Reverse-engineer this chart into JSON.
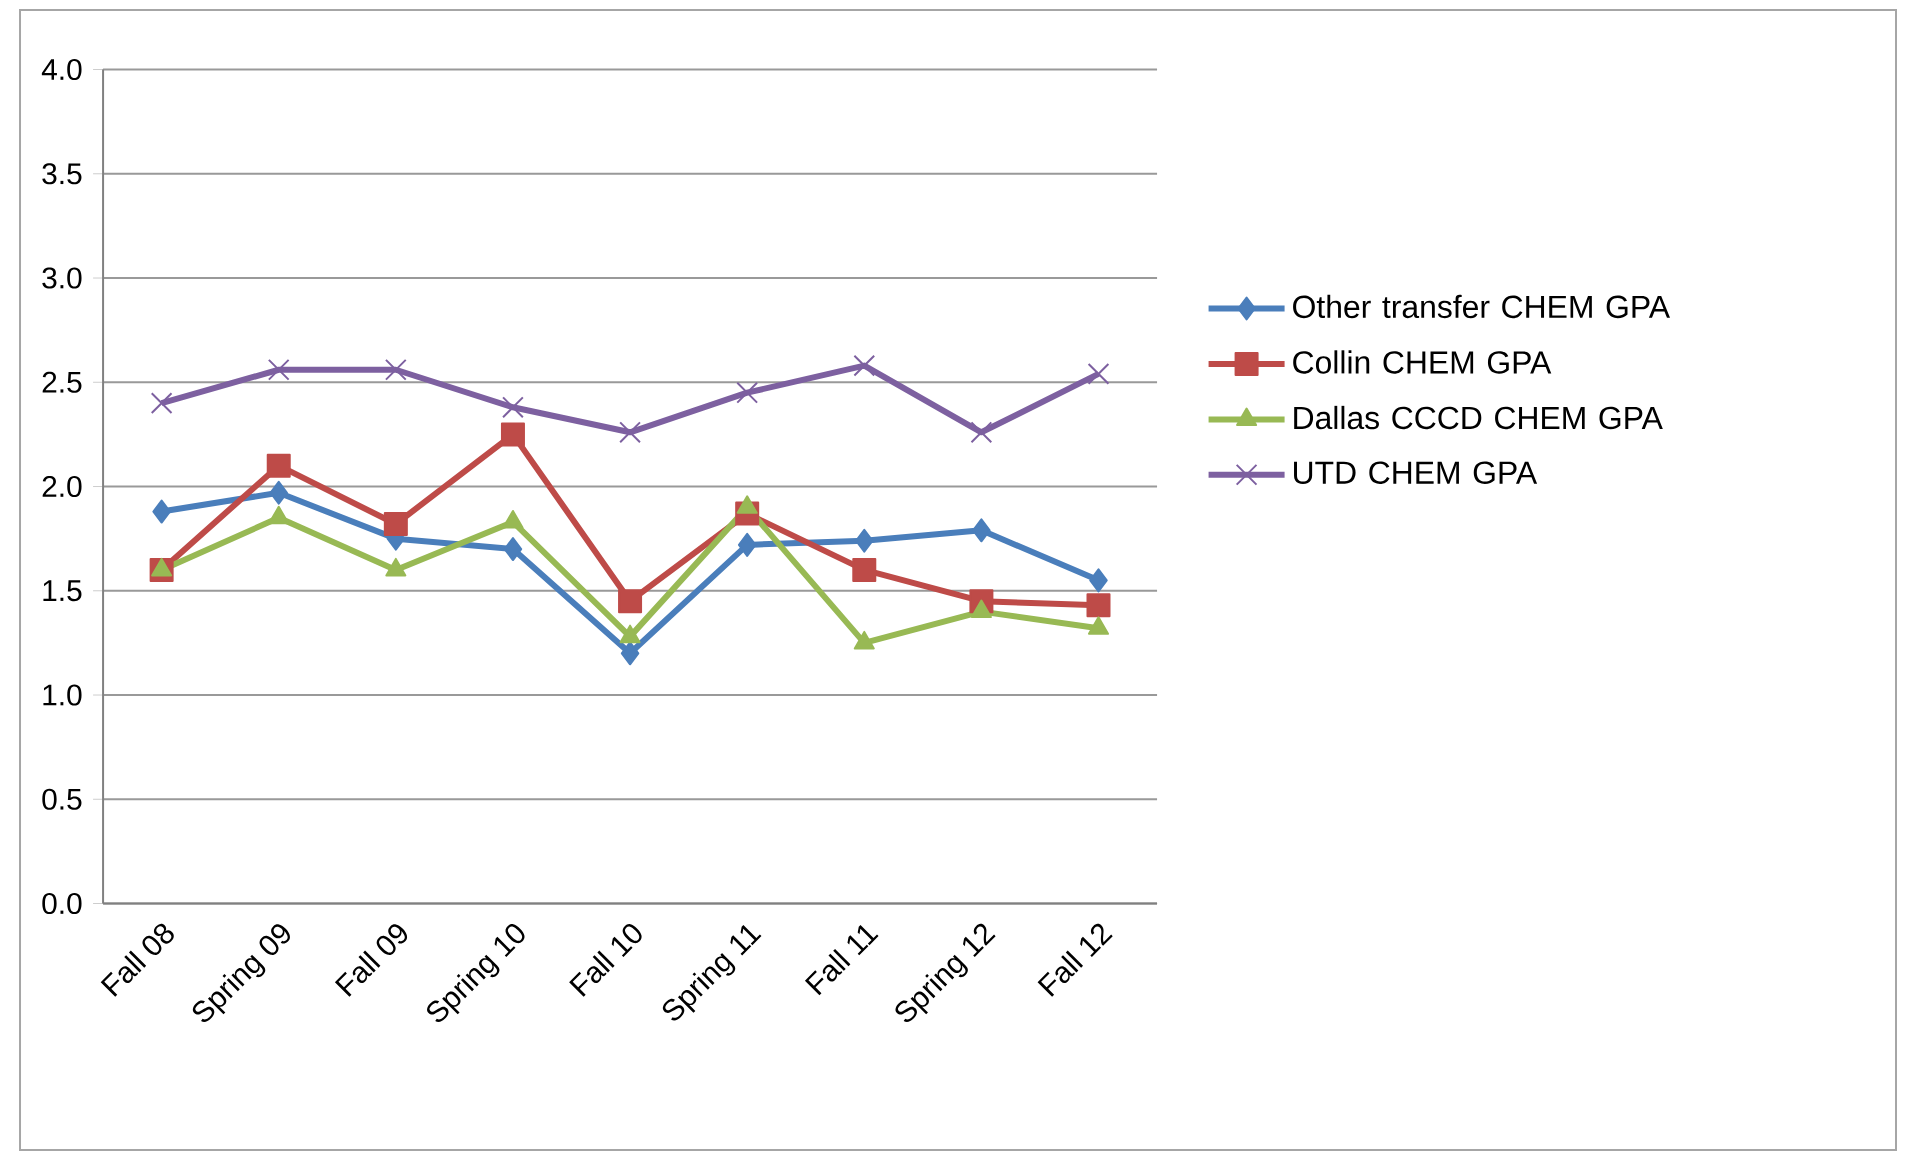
{
  "chart_data": {
    "type": "line",
    "categories": [
      "Fall 08",
      "Spring 09",
      "Fall 09",
      "Spring 10",
      "Fall 10",
      "Spring 11",
      "Fall 11",
      "Spring 12",
      "Fall 12"
    ],
    "series": [
      {
        "name": "Other transfer CHEM GPA",
        "color": "#4a7ebb",
        "marker": "diamond",
        "values": [
          1.88,
          1.97,
          1.75,
          1.7,
          1.2,
          1.72,
          1.74,
          1.79,
          1.55
        ]
      },
      {
        "name": "Collin CHEM GPA",
        "color": "#be4b48",
        "marker": "square",
        "values": [
          1.6,
          2.1,
          1.82,
          2.25,
          1.45,
          1.87,
          1.6,
          1.45,
          1.43
        ]
      },
      {
        "name": "Dallas CCCD CHEM GPA",
        "color": "#98b954",
        "marker": "triangle",
        "values": [
          1.6,
          1.85,
          1.6,
          1.83,
          1.28,
          1.9,
          1.25,
          1.4,
          1.32
        ]
      },
      {
        "name": "UTD CHEM GPA",
        "color": "#7d60a0",
        "marker": "cross",
        "values": [
          2.4,
          2.56,
          2.56,
          2.38,
          2.26,
          2.45,
          2.58,
          2.26,
          2.54
        ]
      }
    ],
    "ylim": [
      0,
      4
    ],
    "yticks": [
      {
        "value": 0,
        "label": "0.0"
      },
      {
        "value": 0.5,
        "label": "0.5"
      },
      {
        "value": 1,
        "label": "1.0"
      },
      {
        "value": 1.5,
        "label": "1.5"
      },
      {
        "value": 2,
        "label": "2.0"
      },
      {
        "value": 2.5,
        "label": "2.5"
      },
      {
        "value": 3,
        "label": "3.0"
      },
      {
        "value": 3.5,
        "label": "3.5"
      },
      {
        "value": 4,
        "label": "4.0"
      }
    ],
    "grid": "y",
    "legend": "right"
  }
}
